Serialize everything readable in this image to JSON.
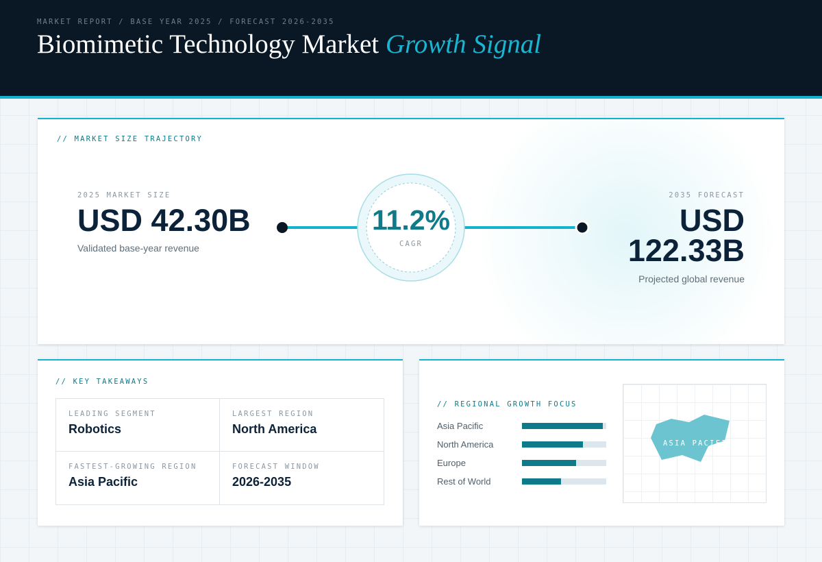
{
  "header": {
    "eyebrow": "MARKET REPORT / BASE YEAR 2025 / FORECAST 2026-2035",
    "title": "Biomimetic Technology Market",
    "title_accent": "Growth Signal"
  },
  "trajectory": {
    "label": "// MARKET SIZE TRAJECTORY",
    "start": {
      "label": "2025 MARKET SIZE",
      "value": "USD 42.30B",
      "note": "Validated base-year revenue"
    },
    "cagr": {
      "value": "11.2%",
      "label": "CAGR"
    },
    "end": {
      "label": "2035 FORECAST",
      "value": "USD 122.33B",
      "note": "Projected global revenue"
    }
  },
  "takeaways": {
    "label": "// KEY TAKEAWAYS",
    "items": [
      {
        "label": "LEADING SEGMENT",
        "value": "Robotics"
      },
      {
        "label": "LARGEST REGION",
        "value": "North America"
      },
      {
        "label": "FASTEST-GROWING REGION",
        "value": "Asia Pacific"
      },
      {
        "label": "FORECAST WINDOW",
        "value": "2026-2035"
      }
    ]
  },
  "regional": {
    "label": "// REGIONAL GROWTH FOCUS",
    "type": "bar",
    "xlim": [
      0,
      100
    ],
    "categories": [
      "Asia Pacific",
      "North America",
      "Europe",
      "Rest of World"
    ],
    "values": [
      96,
      72,
      64,
      46
    ],
    "color": "#0e7a8a",
    "map_label": "ASIA PACIFIC"
  }
}
